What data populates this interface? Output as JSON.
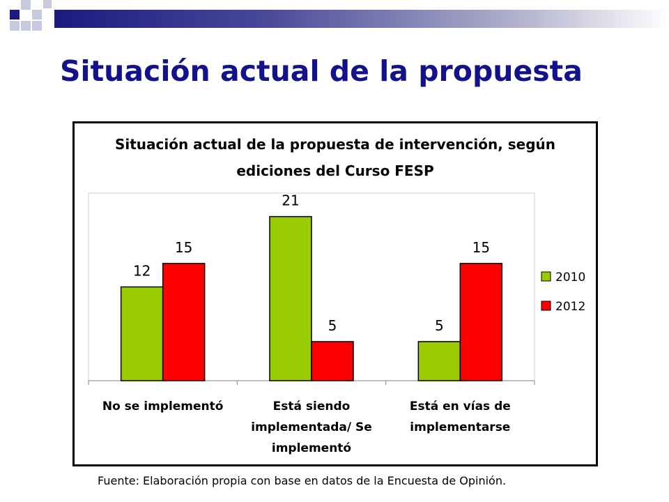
{
  "slide": {
    "title": "Situación actual de la propuesta",
    "footnote": "Fuente: Elaboración propia con base en datos de la Encuesta de Opinión."
  },
  "chart_data": {
    "type": "bar",
    "title_lines": [
      "Situación actual de la propuesta de intervención, según",
      "ediciones del Curso FESP"
    ],
    "categories": [
      [
        "No se implementó"
      ],
      [
        "Está siendo",
        "implementada/ Se",
        "implementó"
      ],
      [
        "Está en vías de",
        "implementarse"
      ]
    ],
    "series": [
      {
        "name": "2010",
        "values": [
          12,
          21,
          5
        ],
        "color": "#99cc00"
      },
      {
        "name": "2012",
        "values": [
          15,
          5,
          15
        ],
        "color": "#ff0000"
      }
    ],
    "ylim": [
      0,
      24
    ],
    "grid": false,
    "legend": "right"
  }
}
